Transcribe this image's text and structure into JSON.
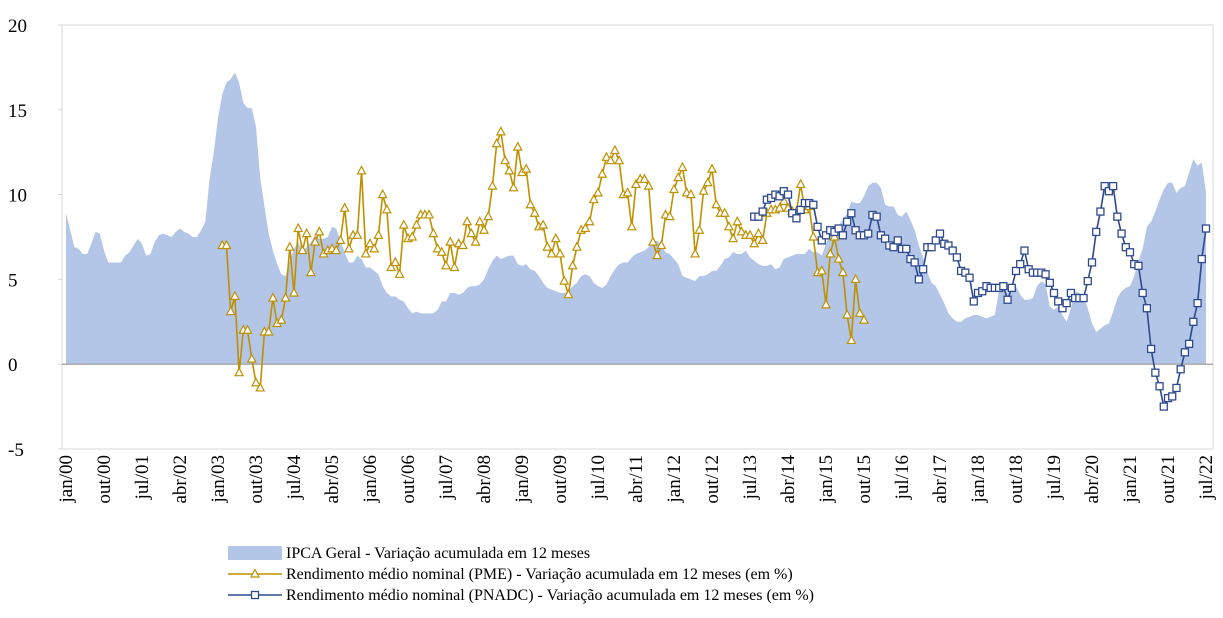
{
  "chart_data": {
    "type": "area-line",
    "x": [
      "jan/00",
      null,
      null,
      null,
      null,
      null,
      null,
      null,
      null,
      "out/00",
      null,
      null,
      null,
      null,
      null,
      null,
      null,
      null,
      "jul/01",
      null,
      null,
      null,
      null,
      null,
      null,
      null,
      null,
      "abr/02",
      null,
      null,
      null,
      null,
      null,
      null,
      null,
      null,
      "jan/03",
      null,
      null,
      null,
      null,
      null,
      null,
      null,
      null,
      "out/03",
      null,
      null,
      null,
      null,
      null,
      null,
      null,
      null,
      "jul/04",
      null,
      null,
      null,
      null,
      null,
      null,
      null,
      null,
      "abr/05",
      null,
      null,
      null,
      null,
      null,
      null,
      null,
      null,
      "jan/06",
      null,
      null,
      null,
      null,
      null,
      null,
      null,
      null,
      "out/06",
      null,
      null,
      null,
      null,
      null,
      null,
      null,
      null,
      "jul/07",
      null,
      null,
      null,
      null,
      null,
      null,
      null,
      null,
      "abr/08",
      null,
      null,
      null,
      null,
      null,
      null,
      null,
      null,
      "jan/09",
      null,
      null,
      null,
      null,
      null,
      null,
      null,
      null,
      "out/09",
      null,
      null,
      null,
      null,
      null,
      null,
      null,
      null,
      "jul/10",
      null,
      null,
      null,
      null,
      null,
      null,
      null,
      null,
      "abr/11",
      null,
      null,
      null,
      null,
      null,
      null,
      null,
      null,
      "jan/12",
      null,
      null,
      null,
      null,
      null,
      null,
      null,
      null,
      "out/12",
      null,
      null,
      null,
      null,
      null,
      null,
      null,
      null,
      "jul/13",
      null,
      null,
      null,
      null,
      null,
      null,
      null,
      null,
      "abr/14",
      null,
      null,
      null,
      null,
      null,
      null,
      null,
      null,
      "jan/15",
      null,
      null,
      null,
      null,
      null,
      null,
      null,
      null,
      "out/15",
      null,
      null,
      null,
      null,
      null,
      null,
      null,
      null,
      "jul/16",
      null,
      null,
      null,
      null,
      null,
      null,
      null,
      null,
      "abr/17",
      null,
      null,
      null,
      null,
      null,
      null,
      null,
      null,
      "jan/18",
      null,
      null,
      null,
      null,
      null,
      null,
      null,
      null,
      "out/18",
      null,
      null,
      null,
      null,
      null,
      null,
      null,
      null,
      "jul/19",
      null,
      null,
      null,
      null,
      null,
      null,
      null,
      null,
      "abr/20",
      null,
      null,
      null,
      null,
      null,
      null,
      null,
      null,
      "jan/21",
      null,
      null,
      null,
      null,
      null,
      null,
      null,
      null,
      "out/21",
      null,
      null,
      null,
      null,
      null,
      null,
      null,
      null,
      "jul/22"
    ],
    "series": [
      {
        "name": "IPCA Geral - Variação acumulada em 12 meses",
        "kind": "area",
        "color": "#b4c6e7",
        "values": [
          8.9,
          7.9,
          6.9,
          6.8,
          6.5,
          6.5,
          7.1,
          7.8,
          7.7,
          6.7,
          6.0,
          6.0,
          6.0,
          6.0,
          6.4,
          6.6,
          7.0,
          7.4,
          7.1,
          6.4,
          6.5,
          7.2,
          7.6,
          7.7,
          7.6,
          7.5,
          7.8,
          8.0,
          7.8,
          7.7,
          7.5,
          7.5,
          7.9,
          8.4,
          10.9,
          12.5,
          14.5,
          15.9,
          16.6,
          16.8,
          17.2,
          16.6,
          15.4,
          15.1,
          15.1,
          14.0,
          11.0,
          9.3,
          7.7,
          6.7,
          5.9,
          5.3,
          5.2,
          6.1,
          6.8,
          7.2,
          6.7,
          6.9,
          7.2,
          7.6,
          7.4,
          7.4,
          7.5,
          8.1,
          8.0,
          7.3,
          6.6,
          6.0,
          6.0,
          6.4,
          6.2,
          5.7,
          5.7,
          5.5,
          5.3,
          4.6,
          4.2,
          4.0,
          4.0,
          3.8,
          3.7,
          3.3,
          3.0,
          3.1,
          3.0,
          3.0,
          3.0,
          3.0,
          3.2,
          3.7,
          3.7,
          4.2,
          4.2,
          4.1,
          4.2,
          4.5,
          4.6,
          4.6,
          4.7,
          5.0,
          5.6,
          6.1,
          6.4,
          6.2,
          6.3,
          6.4,
          6.4,
          5.9,
          5.8,
          5.9,
          5.6,
          5.5,
          5.2,
          4.8,
          4.5,
          4.4,
          4.3,
          4.2,
          4.2,
          4.3,
          4.6,
          4.8,
          5.2,
          5.3,
          5.2,
          4.8,
          4.6,
          4.5,
          4.7,
          5.2,
          5.6,
          5.9,
          6.0,
          6.0,
          6.3,
          6.5,
          6.6,
          6.7,
          6.9,
          7.2,
          7.3,
          7.0,
          6.6,
          6.5,
          6.2,
          5.9,
          5.2,
          5.1,
          5.0,
          4.9,
          5.2,
          5.2,
          5.3,
          5.5,
          5.5,
          5.8,
          6.2,
          6.3,
          6.6,
          6.5,
          6.5,
          6.7,
          6.3,
          6.1,
          5.9,
          5.8,
          5.8,
          5.9,
          5.6,
          5.7,
          6.2,
          6.3,
          6.4,
          6.5,
          6.5,
          6.5,
          6.8,
          6.6,
          6.6,
          6.4,
          7.1,
          7.7,
          8.1,
          8.2,
          8.5,
          8.9,
          9.6,
          9.5,
          9.5,
          9.9,
          10.5,
          10.7,
          10.7,
          10.4,
          9.4,
          9.3,
          9.3,
          8.8,
          8.7,
          9.0,
          8.5,
          7.9,
          7.0,
          6.3,
          5.4,
          4.8,
          4.6,
          4.1,
          3.6,
          3.0,
          2.7,
          2.5,
          2.5,
          2.7,
          2.8,
          2.9,
          2.9,
          2.8,
          2.7,
          2.8,
          2.9,
          4.4,
          4.5,
          4.2,
          4.5,
          4.6,
          4.1,
          3.8,
          3.8,
          3.9,
          4.6,
          4.9,
          4.7,
          3.4,
          3.2,
          3.4,
          2.9,
          2.5,
          3.3,
          4.3,
          4.2,
          4.0,
          3.3,
          2.4,
          1.9,
          2.1,
          2.3,
          2.4,
          3.1,
          3.9,
          4.3,
          4.5,
          4.6,
          5.2,
          6.1,
          6.8,
          8.1,
          8.4,
          9.0,
          9.7,
          10.3,
          10.7,
          10.7,
          10.1,
          10.4,
          10.5,
          11.3,
          12.1,
          11.7,
          11.9,
          10.1
        ]
      },
      {
        "name": "Rendimento médio nominal (PME) - Variação acumulada em 12 meses (em %)",
        "kind": "line",
        "marker": "triangle",
        "color": "#bf9000",
        "values": [
          null,
          null,
          null,
          null,
          null,
          null,
          null,
          null,
          null,
          null,
          null,
          null,
          null,
          null,
          null,
          null,
          null,
          null,
          null,
          null,
          null,
          null,
          null,
          null,
          null,
          null,
          null,
          null,
          null,
          null,
          null,
          null,
          null,
          null,
          null,
          null,
          null,
          7.0,
          7.0,
          3.1,
          4.0,
          -0.5,
          2.0,
          2.0,
          0.3,
          -1.1,
          -1.4,
          1.9,
          1.9,
          3.9,
          2.4,
          2.6,
          3.9,
          6.9,
          4.2,
          8.0,
          6.7,
          7.7,
          5.4,
          7.2,
          7.8,
          6.5,
          6.7,
          6.8,
          6.7,
          7.3,
          9.2,
          6.8,
          7.6,
          7.6,
          11.4,
          6.5,
          7.1,
          6.8,
          7.6,
          10.0,
          9.1,
          5.7,
          6.0,
          5.3,
          8.2,
          7.4,
          7.5,
          8.2,
          8.8,
          8.8,
          8.8,
          7.7,
          6.8,
          6.6,
          5.8,
          7.2,
          5.7,
          7.1,
          7.0,
          8.4,
          7.7,
          7.2,
          8.4,
          7.9,
          8.7,
          10.5,
          13.0,
          13.7,
          12.0,
          11.4,
          10.4,
          12.8,
          11.3,
          11.5,
          9.4,
          8.9,
          8.1,
          8.2,
          6.9,
          6.5,
          7.4,
          6.5,
          4.9,
          4.1,
          5.8,
          6.9,
          7.9,
          8.0,
          8.4,
          9.7,
          10.1,
          11.2,
          12.2,
          12.0,
          12.6,
          12.0,
          10.0,
          10.1,
          8.1,
          10.6,
          10.9,
          10.9,
          10.5,
          7.2,
          6.4,
          7.0,
          8.8,
          8.7,
          10.3,
          11.0,
          11.6,
          10.1,
          10.0,
          6.5,
          7.9,
          10.2,
          10.7,
          11.5,
          9.4,
          8.9,
          8.9,
          8.1,
          7.4,
          8.4,
          7.8,
          7.6,
          7.6,
          7.1,
          7.7,
          7.3,
          8.9,
          9.1,
          9.1,
          9.2,
          9.6,
          9.2,
          9.0,
          9.0,
          10.6,
          9.1,
          9.3,
          7.5,
          5.4,
          5.5,
          3.5,
          6.5,
          7.5,
          6.2,
          5.4,
          2.9,
          1.4,
          5.0,
          3.0,
          2.6,
          null,
          null,
          null,
          null,
          null,
          null,
          null,
          null,
          null,
          null,
          null,
          null,
          null,
          null,
          null,
          null,
          null,
          null,
          null,
          null,
          null,
          null,
          null,
          null,
          null,
          null,
          null,
          null,
          null,
          null,
          null,
          null,
          null,
          null,
          null,
          null,
          null,
          null,
          null,
          null,
          null,
          null,
          null,
          null,
          null,
          null,
          null,
          null,
          null,
          null,
          null,
          null,
          null,
          null,
          null,
          null,
          null,
          null,
          null,
          null,
          null,
          null,
          null,
          null,
          null,
          null,
          null,
          null,
          null,
          null,
          null,
          null,
          null,
          null,
          null,
          null,
          null,
          null,
          null,
          null,
          null
        ]
      },
      {
        "name": "Rendimento médio nominal (PNADC) - Variação acumulada em 12 meses (em %)",
        "kind": "line",
        "marker": "square",
        "color": "#2e4a8e",
        "values": [
          null,
          null,
          null,
          null,
          null,
          null,
          null,
          null,
          null,
          null,
          null,
          null,
          null,
          null,
          null,
          null,
          null,
          null,
          null,
          null,
          null,
          null,
          null,
          null,
          null,
          null,
          null,
          null,
          null,
          null,
          null,
          null,
          null,
          null,
          null,
          null,
          null,
          null,
          null,
          null,
          null,
          null,
          null,
          null,
          null,
          null,
          null,
          null,
          null,
          null,
          null,
          null,
          null,
          null,
          null,
          null,
          null,
          null,
          null,
          null,
          null,
          null,
          null,
          null,
          null,
          null,
          null,
          null,
          null,
          null,
          null,
          null,
          null,
          null,
          null,
          null,
          null,
          null,
          null,
          null,
          null,
          null,
          null,
          null,
          null,
          null,
          null,
          null,
          null,
          null,
          null,
          null,
          null,
          null,
          null,
          null,
          null,
          null,
          null,
          null,
          null,
          null,
          null,
          null,
          null,
          null,
          null,
          null,
          null,
          null,
          null,
          null,
          null,
          null,
          null,
          null,
          null,
          null,
          null,
          null,
          null,
          null,
          null,
          null,
          null,
          null,
          null,
          null,
          null,
          null,
          null,
          null,
          null,
          null,
          null,
          null,
          null,
          null,
          null,
          null,
          null,
          null,
          null,
          null,
          null,
          null,
          null,
          null,
          null,
          null,
          null,
          null,
          null,
          null,
          null,
          null,
          null,
          null,
          null,
          null,
          null,
          null,
          null,
          8.7,
          8.7,
          9.0,
          9.7,
          9.8,
          10.0,
          9.9,
          10.2,
          10.0,
          8.9,
          8.6,
          9.1,
          9.5,
          9.5,
          9.4,
          8.1,
          7.3,
          7.6,
          7.9,
          7.8,
          8.0,
          7.6,
          8.4,
          8.9,
          7.9,
          7.6,
          7.6,
          7.7,
          8.8,
          8.7,
          7.6,
          7.4,
          7.0,
          6.9,
          7.3,
          6.8,
          6.8,
          6.2,
          6.0,
          5.0,
          5.6,
          6.9,
          6.9,
          7.3,
          7.7,
          7.1,
          7.0,
          6.7,
          6.3,
          5.5,
          5.4,
          5.1,
          3.7,
          4.2,
          4.3,
          4.6,
          4.5,
          4.5,
          4.5,
          4.6,
          3.8,
          4.5,
          5.5,
          5.9,
          6.7,
          5.6,
          5.4,
          5.4,
          5.4,
          5.3,
          4.8,
          4.2,
          3.7,
          3.3,
          3.6,
          4.2,
          3.9,
          3.9,
          3.9,
          4.9,
          6.0,
          7.8,
          9.0,
          10.5,
          10.2,
          10.5,
          8.7,
          7.7,
          6.9,
          6.6,
          5.9,
          5.8,
          4.2,
          3.3,
          0.9,
          -0.5,
          -1.3,
          -2.5,
          -2.0,
          -1.9,
          -1.4,
          -0.3,
          0.7,
          1.2,
          2.5,
          3.6,
          6.2,
          8.0
        ]
      }
    ],
    "ylim": [
      -5,
      20
    ],
    "yticks": [
      -5,
      0,
      5,
      10,
      15,
      20
    ],
    "legend": "bottom-left"
  }
}
